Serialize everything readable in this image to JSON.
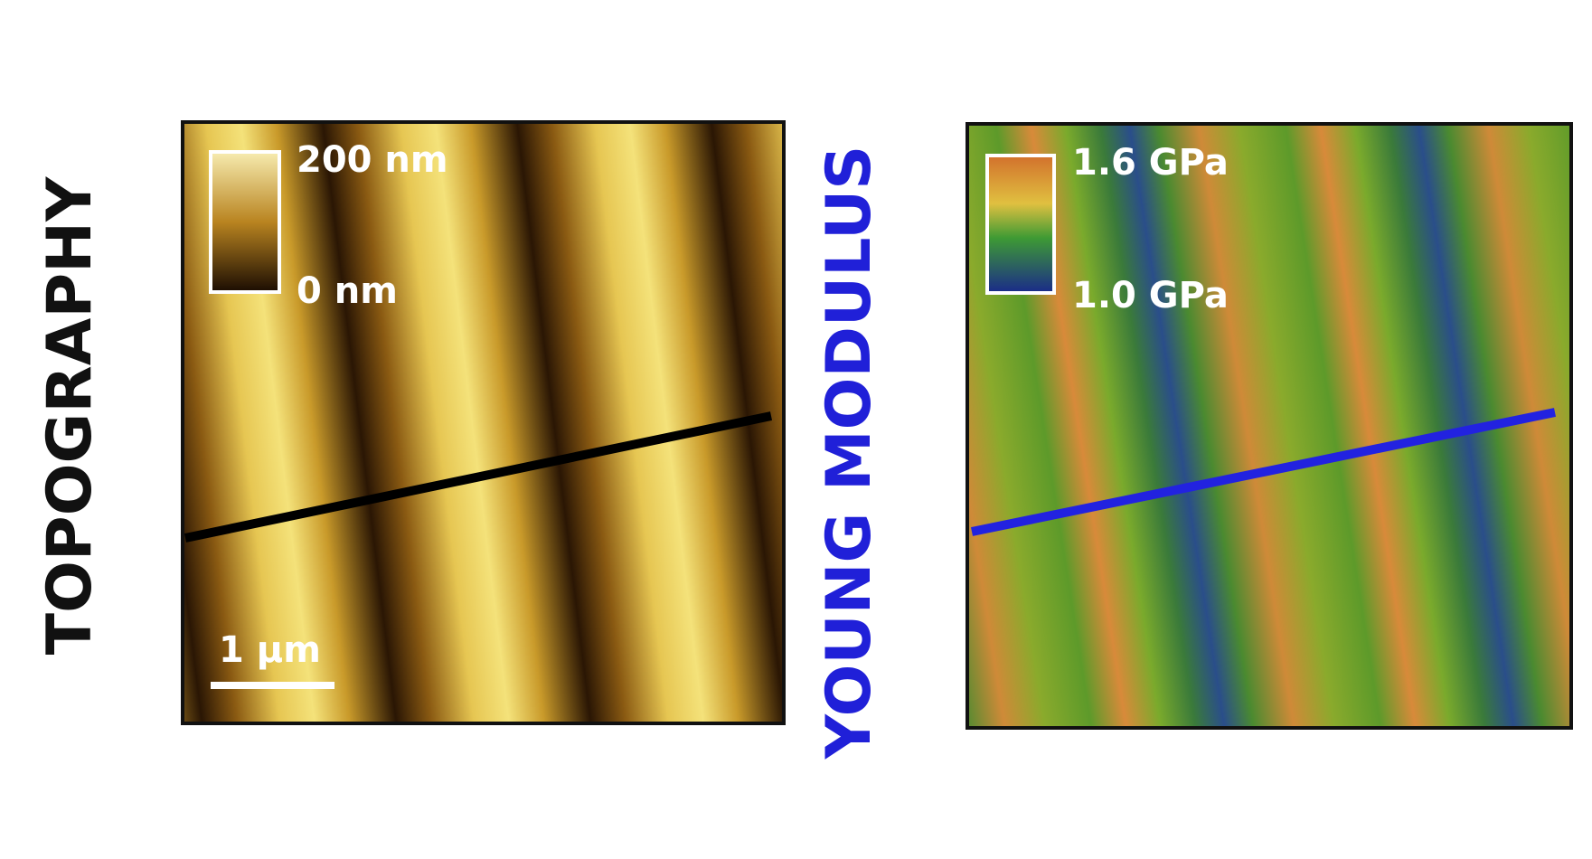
{
  "left_label": "TOPOGRAPHY",
  "topography": {
    "colorbar_max": "200 nm",
    "colorbar_min": "0 nm",
    "scale_bar": "1 µm"
  },
  "right_label": "YOUNG MODULUS",
  "modulus": {
    "colorbar_max": "1.6 GPa",
    "colorbar_min": "1.0 GPa"
  }
}
